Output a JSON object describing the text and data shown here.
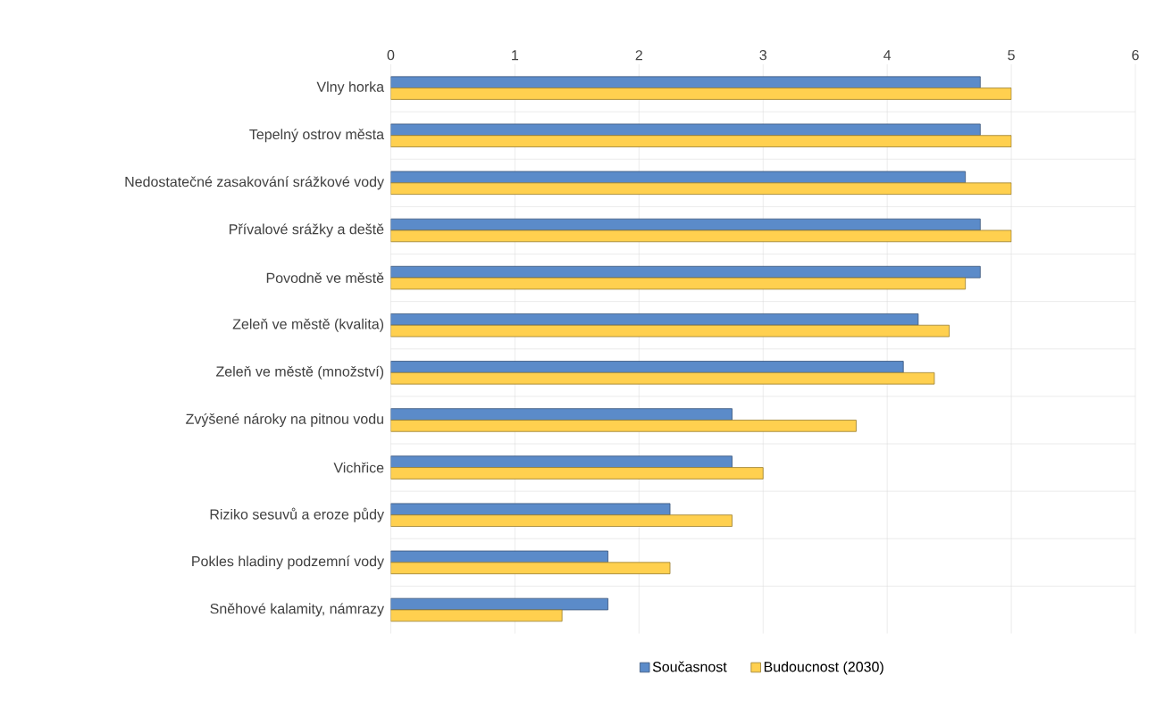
{
  "chart_data": {
    "type": "bar",
    "orientation": "horizontal",
    "categories": [
      "Vlny horka",
      "Tepelný ostrov města",
      "Nedostatečné zasakování srážkové vody",
      "Přívalové srážky a deště",
      "Povodně ve městě",
      "Zeleň ve městě (kvalita)",
      "Zeleň ve městě (množství)",
      "Zvýšené nároky na pitnou vodu",
      "Vichřice",
      "Riziko sesuvů a eroze půdy",
      "Pokles hladiny podzemní vody",
      "Sněhové kalamity, námrazy"
    ],
    "series": [
      {
        "name": "Současnost",
        "color": "#5b8bc9",
        "values": [
          4.75,
          4.75,
          4.63,
          4.75,
          4.75,
          4.25,
          4.13,
          2.75,
          2.75,
          2.25,
          1.75,
          1.75
        ]
      },
      {
        "name": "Budoucnost (2030)",
        "color": "#ffd04f",
        "values": [
          5,
          5,
          5,
          5,
          4.63,
          4.5,
          4.38,
          3.75,
          3,
          2.75,
          2.25,
          1.38
        ]
      }
    ],
    "xlim": [
      0,
      6
    ],
    "xticks": [
      0,
      1,
      2,
      3,
      4,
      5,
      6
    ],
    "grid": "x",
    "legend": "bottom"
  }
}
